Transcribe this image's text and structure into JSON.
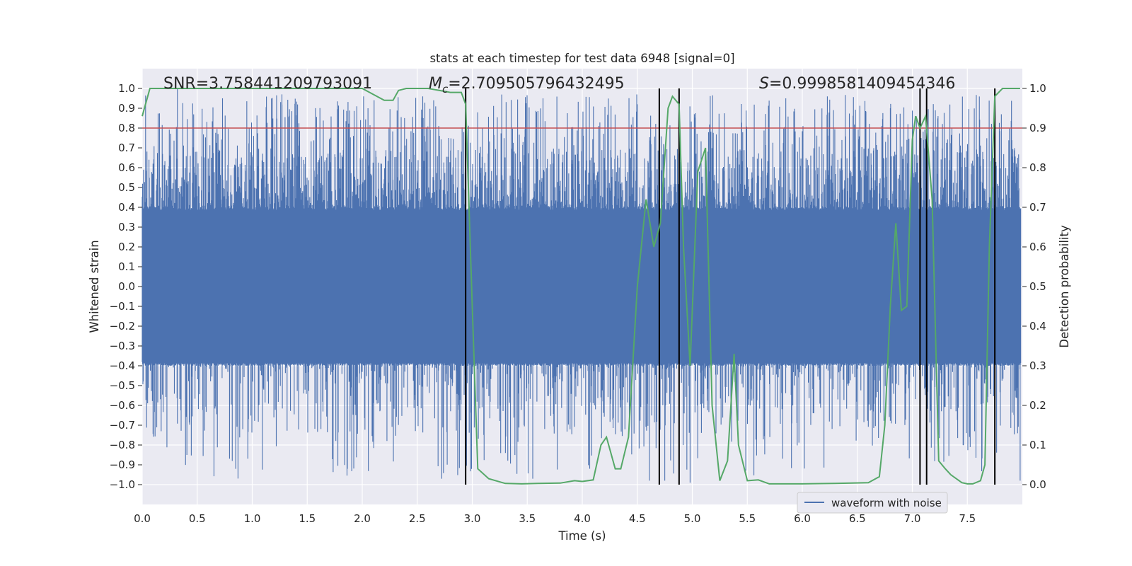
{
  "chart_data": {
    "type": "line",
    "title": "stats at each timestep for test data 6948 [signal=0]",
    "xlabel": "Time (s)",
    "ylabel": "Whitened strain",
    "y2label": "Detection probability",
    "xlim": [
      0.0,
      8.0
    ],
    "ylim": [
      -1.1,
      1.1
    ],
    "y2lim": [
      -0.05,
      1.05
    ],
    "xticks": [
      "0.0",
      "0.5",
      "1.0",
      "1.5",
      "2.0",
      "2.5",
      "3.0",
      "3.5",
      "4.0",
      "4.5",
      "5.0",
      "5.5",
      "6.0",
      "6.5",
      "7.0",
      "7.5"
    ],
    "yticks": [
      "1.0",
      "0.9",
      "0.8",
      "0.7",
      "0.6",
      "0.5",
      "0.4",
      "0.3",
      "0.2",
      "0.1",
      "0.0",
      "−0.1",
      "−0.2",
      "−0.3",
      "−0.4",
      "−0.5",
      "−0.6",
      "−0.7",
      "−0.8",
      "−0.9",
      "−1.0"
    ],
    "y2ticks": [
      "1.0",
      "0.9",
      "0.8",
      "0.7",
      "0.6",
      "0.5",
      "0.4",
      "0.3",
      "0.2",
      "0.1",
      "0.0"
    ],
    "annotations": {
      "snr": "SNR=3.758441209793091",
      "mc_symbol": "M",
      "mc_sub": "c",
      "mc_value": "=2.709505796432495",
      "s_symbol": "S",
      "s_value": "=0.9998581409454346"
    },
    "legend": {
      "label": "waveform with noise",
      "location": "lower-right"
    },
    "threshold_line": {
      "y2_value": 0.9,
      "color": "#c44e52"
    },
    "vertical_lines_x": [
      2.94,
      4.7,
      4.88,
      7.07,
      7.13,
      7.75
    ],
    "series": [
      {
        "name": "waveform with noise",
        "axis": "left",
        "kind": "noise",
        "color": "#4c72b0",
        "core_amplitude": 0.4,
        "spike_max": 1.0,
        "spike_min": -1.0,
        "samples": 8192
      },
      {
        "name": "Detection probability",
        "axis": "right",
        "color": "#55a868",
        "x": [
          0.0,
          0.07,
          0.2,
          0.5,
          1.0,
          1.5,
          1.9,
          2.0,
          2.1,
          2.2,
          2.28,
          2.33,
          2.4,
          2.6,
          2.8,
          2.9,
          2.94,
          3.0,
          3.05,
          3.15,
          3.3,
          3.45,
          3.6,
          3.8,
          3.93,
          4.0,
          4.1,
          4.17,
          4.22,
          4.3,
          4.35,
          4.42,
          4.5,
          4.58,
          4.65,
          4.71,
          4.78,
          4.82,
          4.88,
          4.92,
          4.98,
          5.05,
          5.12,
          5.18,
          5.25,
          5.32,
          5.38,
          5.42,
          5.5,
          5.6,
          5.7,
          5.8,
          6.0,
          6.3,
          6.6,
          6.7,
          6.75,
          6.8,
          6.85,
          6.9,
          6.95,
          7.0,
          7.03,
          7.07,
          7.12,
          7.18,
          7.24,
          7.3,
          7.35,
          7.45,
          7.5,
          7.55,
          7.62,
          7.66,
          7.7,
          7.75,
          7.82,
          7.85,
          7.9,
          7.98
        ],
        "y": [
          0.93,
          1.0,
          1.0,
          1.0,
          1.0,
          1.0,
          1.0,
          1.0,
          0.985,
          0.97,
          0.97,
          0.995,
          1.0,
          1.0,
          0.99,
          0.99,
          0.96,
          0.45,
          0.04,
          0.015,
          0.003,
          0.002,
          0.003,
          0.004,
          0.01,
          0.008,
          0.012,
          0.1,
          0.12,
          0.04,
          0.04,
          0.12,
          0.5,
          0.72,
          0.6,
          0.66,
          0.95,
          0.98,
          0.96,
          0.6,
          0.3,
          0.79,
          0.85,
          0.2,
          0.01,
          0.06,
          0.33,
          0.1,
          0.01,
          0.012,
          0.002,
          0.002,
          0.002,
          0.003,
          0.005,
          0.02,
          0.15,
          0.45,
          0.66,
          0.44,
          0.45,
          0.87,
          0.93,
          0.9,
          0.93,
          0.72,
          0.06,
          0.04,
          0.025,
          0.005,
          0.002,
          0.002,
          0.01,
          0.05,
          0.6,
          0.98,
          1.0,
          1.0,
          1.0,
          1.0
        ]
      }
    ]
  }
}
